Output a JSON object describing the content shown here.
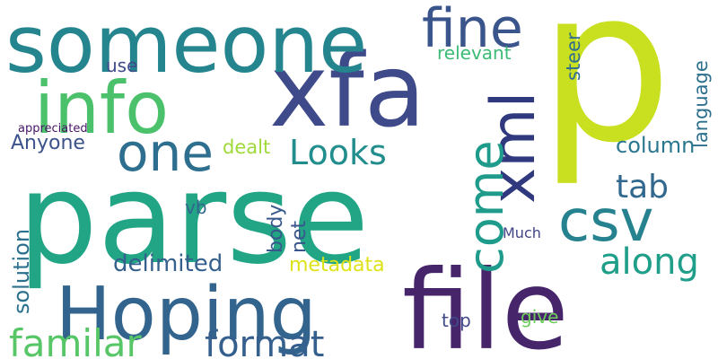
{
  "words": [
    {
      "text": "p",
      "color": "#c8e020"
    },
    {
      "text": "parse",
      "color": "#21a585"
    },
    {
      "text": "file",
      "color": "#46256b"
    },
    {
      "text": "xfa",
      "color": "#3e4a89"
    },
    {
      "text": "someone",
      "color": "#25858e"
    },
    {
      "text": "Hoping",
      "color": "#32648e"
    },
    {
      "text": "info",
      "color": "#4cc16b"
    },
    {
      "text": "xml",
      "color": "#30397e"
    },
    {
      "text": "csv",
      "color": "#26828e"
    },
    {
      "text": "fine",
      "color": "#3a548c"
    },
    {
      "text": "one",
      "color": "#2e6e8e"
    },
    {
      "text": "come",
      "color": "#1e9b8a"
    },
    {
      "text": "familar",
      "color": "#56c667"
    },
    {
      "text": "format",
      "color": "#355f8d"
    },
    {
      "text": "along",
      "color": "#1f9e89"
    },
    {
      "text": "Looks",
      "color": "#228d8d"
    },
    {
      "text": "tab",
      "color": "#31688e"
    },
    {
      "text": "delimited",
      "color": "#355f8d"
    },
    {
      "text": "column",
      "color": "#2a778e"
    },
    {
      "text": "metadata",
      "color": "#dde318"
    },
    {
      "text": "solution",
      "color": "#2c718e"
    },
    {
      "text": "body",
      "color": "#38588c"
    },
    {
      "text": "net",
      "color": "#3a548c"
    },
    {
      "text": "Anyone",
      "color": "#3b528b"
    },
    {
      "text": "language",
      "color": "#2d708e"
    },
    {
      "text": "steer",
      "color": "#2f6c8e"
    },
    {
      "text": "relevant",
      "color": "#3bbb75"
    },
    {
      "text": "dealt",
      "color": "#9fda3a"
    },
    {
      "text": "vb",
      "color": "#32658e"
    },
    {
      "text": "use",
      "color": "#3e4c8a"
    },
    {
      "text": "top",
      "color": "#3f4889"
    },
    {
      "text": "give",
      "color": "#6ccd5a"
    },
    {
      "text": "Much",
      "color": "#414487"
    },
    {
      "text": "appreciated",
      "color": "#481467"
    }
  ]
}
